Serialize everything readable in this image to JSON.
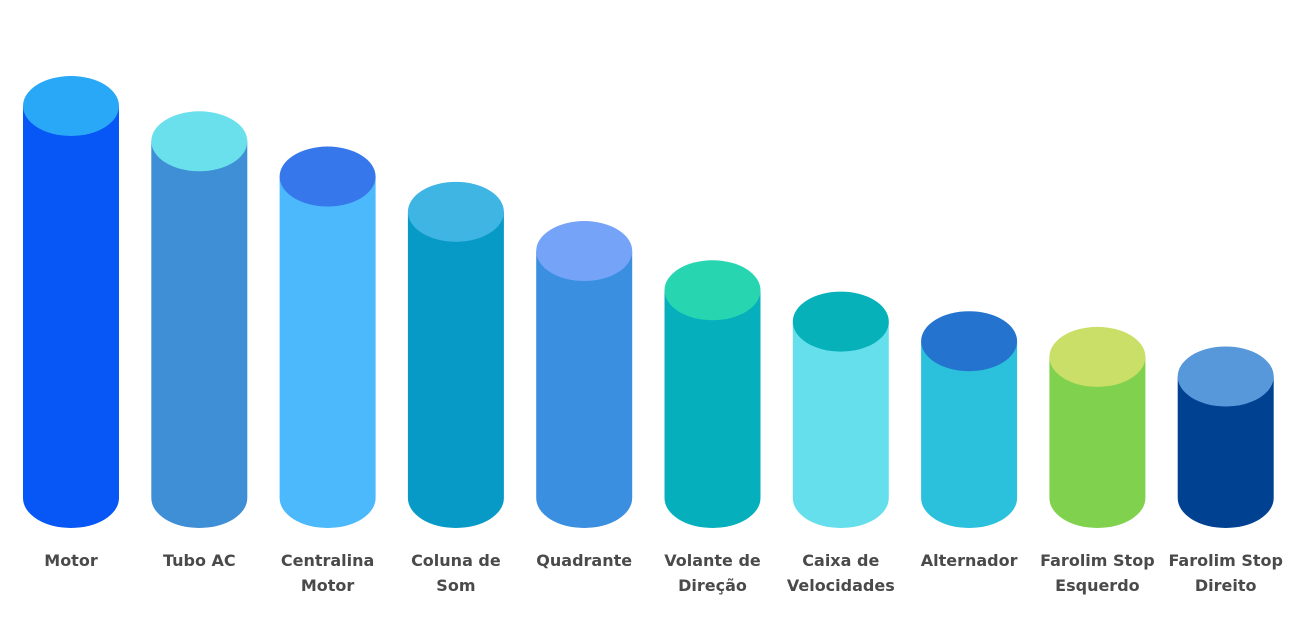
{
  "chart_data": {
    "type": "bar",
    "style": "3d-cylinder",
    "grid": false,
    "legend": "none",
    "categories": [
      [
        "Motor"
      ],
      [
        "Tubo AC"
      ],
      [
        "Centralina",
        "Motor"
      ],
      [
        "Coluna de",
        "Som"
      ],
      [
        "Quadrante"
      ],
      [
        "Volante de",
        "Direção"
      ],
      [
        "Caixa de",
        "Velocidades"
      ],
      [
        "Alternador"
      ],
      [
        "Farolim Stop",
        "Esquerdo"
      ],
      [
        "Farolim Stop",
        "Direito"
      ]
    ],
    "values": [
      100,
      91,
      82,
      73,
      63,
      53,
      45,
      40,
      36,
      31
    ],
    "ylim": [
      0,
      100
    ],
    "colors": {
      "body": [
        "#0657f5",
        "#3f8fd6",
        "#4cb9fc",
        "#079ac6",
        "#3b8fe0",
        "#05b0bc",
        "#66dfec",
        "#2bc0dc",
        "#80d24e",
        "#004291"
      ],
      "top": [
        "#2aa8f8",
        "#69e0ec",
        "#3678eb",
        "#3eb5e2",
        "#74a3f7",
        "#27d6b0",
        "#06b1ba",
        "#2373cf",
        "#cadf67",
        "#5698d9"
      ]
    }
  }
}
